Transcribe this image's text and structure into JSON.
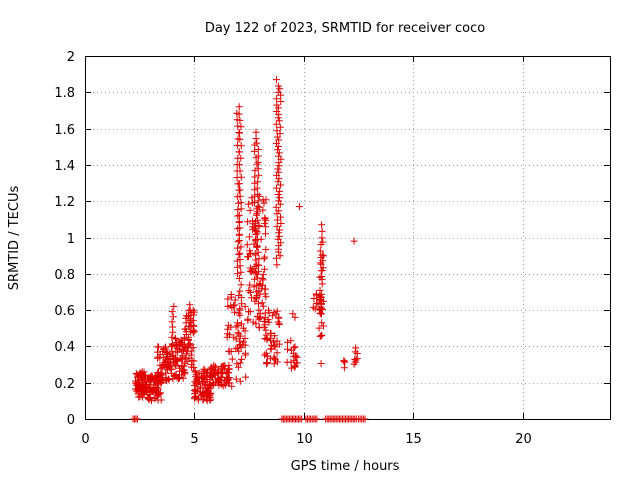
{
  "chart_data": {
    "type": "scatter",
    "title": "Day 122 of 2023, SRMTID for receiver coco",
    "xlabel": "GPS time / hours",
    "ylabel": "SRMTID / TECUs",
    "xlim": [
      0,
      24
    ],
    "ylim": [
      0,
      2
    ],
    "xticks": [
      0,
      5,
      10,
      15,
      20
    ],
    "xtick_labels": [
      "0",
      "5",
      "10",
      "15",
      "20"
    ],
    "yticks": [
      0,
      0.2,
      0.4,
      0.6,
      0.8,
      1,
      1.2,
      1.4,
      1.6,
      1.8,
      2
    ],
    "ytick_labels": [
      "0",
      "0.2",
      "0.4",
      "0.6",
      "0.8",
      "1",
      "1.2",
      "1.4",
      "1.6",
      "1.8",
      "2"
    ],
    "grid": true,
    "marker": "+",
    "color": "#e00000",
    "series": [
      {
        "name": "SRMTID",
        "clusters": [
          {
            "x": [
              2.3,
              2.8
            ],
            "y": [
              0.12,
              0.26
            ],
            "count": 70
          },
          {
            "x": [
              2.8,
              3.5
            ],
            "y": [
              0.1,
              0.24
            ],
            "count": 70
          },
          {
            "x": [
              3.3,
              3.9
            ],
            "y": [
              0.2,
              0.4
            ],
            "count": 60
          },
          {
            "x": [
              3.9,
              4.6
            ],
            "y": [
              0.22,
              0.45
            ],
            "count": 70
          },
          {
            "x": [
              4.5,
              5.0
            ],
            "y": [
              0.28,
              0.6
            ],
            "count": 50
          },
          {
            "x": [
              5.0,
              5.8
            ],
            "y": [
              0.1,
              0.28
            ],
            "count": 80
          },
          {
            "x": [
              5.7,
              6.6
            ],
            "y": [
              0.18,
              0.3
            ],
            "count": 70
          },
          {
            "x": [
              6.5,
              7.4
            ],
            "y": [
              0.18,
              0.7
            ],
            "count": 60
          },
          {
            "x": [
              7.4,
              8.3
            ],
            "y": [
              0.5,
              1.25
            ],
            "count": 90
          },
          {
            "x": [
              8.2,
              8.9
            ],
            "y": [
              0.3,
              0.6
            ],
            "count": 50
          },
          {
            "x": [
              9.2,
              9.7
            ],
            "y": [
              0.28,
              0.45
            ],
            "count": 20
          },
          {
            "x": [
              10.4,
              10.9
            ],
            "y": [
              0.58,
              0.7
            ],
            "count": 20
          },
          {
            "x": [
              10.7,
              10.9
            ],
            "y": [
              0.25,
              1.05
            ],
            "count": 20
          },
          {
            "x": [
              11.8,
              11.9
            ],
            "y": [
              0.25,
              0.33
            ],
            "count": 4
          },
          {
            "x": [
              12.3,
              12.5
            ],
            "y": [
              0.3,
              0.4
            ],
            "count": 8
          }
        ],
        "spikes": [
          {
            "x": 4.0,
            "y": [
              0.45,
              0.62
            ]
          },
          {
            "x": 4.8,
            "y": [
              0.45,
              0.63
            ]
          },
          {
            "x": 7.0,
            "y": [
              0.8,
              1.72
            ]
          },
          {
            "x": 7.1,
            "y": [
              0.6,
              1.68
            ]
          },
          {
            "x": 7.8,
            "y": [
              0.7,
              1.58
            ]
          },
          {
            "x": 7.9,
            "y": [
              0.6,
              1.52
            ]
          },
          {
            "x": 8.8,
            "y": [
              0.85,
              1.87
            ]
          },
          {
            "x": 8.9,
            "y": [
              0.9,
              1.82
            ]
          },
          {
            "x": 10.8,
            "y": [
              0.6,
              1.07
            ]
          }
        ],
        "points": [
          {
            "x": 9.8,
            "y": 1.17
          },
          {
            "x": 12.3,
            "y": 0.98
          },
          {
            "x": 9.5,
            "y": 0.58
          },
          {
            "x": 9.6,
            "y": 0.56
          }
        ],
        "zero_segments": [
          {
            "x": [
              2.2,
              2.4
            ]
          },
          {
            "x": [
              9.0,
              9.9
            ]
          },
          {
            "x": [
              10.1,
              10.6
            ]
          },
          {
            "x": [
              11.0,
              12.4
            ]
          },
          {
            "x": [
              12.5,
              12.8
            ]
          }
        ]
      }
    ]
  }
}
